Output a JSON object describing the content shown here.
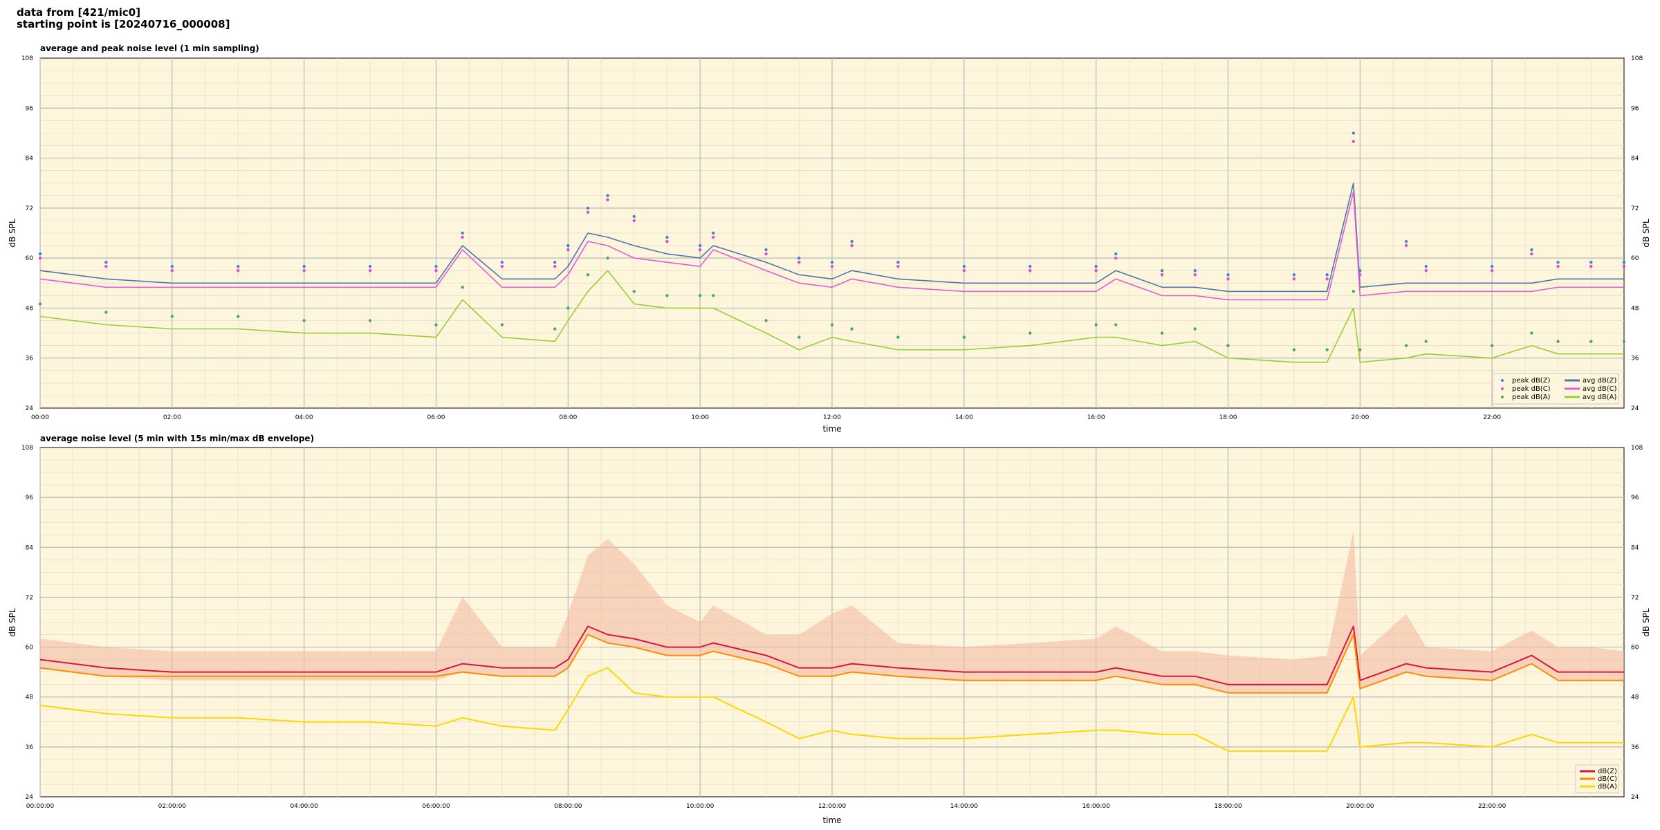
{
  "header": {
    "line1": "data from [421/mic0]",
    "line2": "starting point is [20240716_000008]"
  },
  "colors": {
    "background": "#fdf6dc",
    "peak_z": "#3a88d4",
    "peak_c": "#ee44dd",
    "peak_a": "#44aa66",
    "avg_z": "#4f75ad",
    "avg_c": "#e35cd6",
    "avg_a": "#9acd32",
    "env_z": "#dc143c",
    "env_c": "#ff8c00",
    "env_a": "#ffd700",
    "envelope": "#f4b6a0"
  },
  "chart_data": [
    {
      "type": "line",
      "title": "average and peak noise level (1 min sampling)",
      "xlabel": "time",
      "ylabel": "dB SPL",
      "xlim": [
        0,
        24
      ],
      "ylim": [
        24,
        108
      ],
      "yticks": [
        "24",
        "36",
        "48",
        "60",
        "72",
        "84",
        "96",
        "108"
      ],
      "xticks": [
        "00:00",
        "02:00",
        "04:00",
        "06:00",
        "08:00",
        "10:00",
        "12:00",
        "14:00",
        "16:00",
        "18:00",
        "20:00",
        "22:00"
      ],
      "grid": true,
      "legend_position": "bottom-right",
      "legend": [
        "peak dB(Z)",
        "peak dB(C)",
        "peak dB(A)",
        "avg dB(Z)",
        "avg dB(C)",
        "avg dB(A)"
      ],
      "x": [
        0,
        1,
        2,
        3,
        4,
        5,
        6,
        6.4,
        7,
        7.8,
        8,
        8.3,
        8.6,
        9,
        9.5,
        10,
        10.2,
        11,
        11.5,
        12,
        12.3,
        13,
        14,
        15,
        16,
        16.3,
        17,
        17.5,
        18,
        19,
        19.5,
        19.9,
        20,
        20.7,
        21,
        22,
        22.6,
        23,
        23.5,
        24
      ],
      "series": [
        {
          "name": "avg dB(Z)",
          "values": [
            57,
            55,
            54,
            54,
            54,
            54,
            54,
            63,
            55,
            55,
            58,
            66,
            65,
            63,
            61,
            60,
            63,
            59,
            56,
            55,
            57,
            55,
            54,
            54,
            54,
            57,
            53,
            53,
            52,
            52,
            52,
            78,
            53,
            54,
            54,
            54,
            54,
            55,
            55,
            55
          ]
        },
        {
          "name": "avg dB(C)",
          "values": [
            55,
            53,
            53,
            53,
            53,
            53,
            53,
            62,
            53,
            53,
            56,
            64,
            63,
            60,
            59,
            58,
            62,
            57,
            54,
            53,
            55,
            53,
            52,
            52,
            52,
            55,
            51,
            51,
            50,
            50,
            50,
            76,
            51,
            52,
            52,
            52,
            52,
            53,
            53,
            53
          ]
        },
        {
          "name": "avg dB(A)",
          "values": [
            46,
            44,
            43,
            43,
            42,
            42,
            41,
            50,
            41,
            40,
            45,
            52,
            57,
            49,
            48,
            48,
            48,
            42,
            38,
            41,
            40,
            38,
            38,
            39,
            41,
            41,
            39,
            40,
            36,
            35,
            35,
            48,
            35,
            36,
            37,
            36,
            39,
            37,
            37,
            37
          ]
        },
        {
          "name": "peak dB(Z)",
          "values": [
            61,
            59,
            58,
            58,
            58,
            58,
            58,
            66,
            59,
            59,
            63,
            72,
            75,
            70,
            65,
            63,
            66,
            62,
            60,
            59,
            64,
            59,
            58,
            58,
            58,
            61,
            57,
            57,
            56,
            56,
            56,
            90,
            57,
            64,
            58,
            58,
            62,
            59,
            59,
            59
          ]
        },
        {
          "name": "peak dB(C)",
          "values": [
            60,
            58,
            57,
            57,
            57,
            57,
            57,
            65,
            58,
            58,
            62,
            71,
            74,
            69,
            64,
            62,
            65,
            61,
            59,
            58,
            63,
            58,
            57,
            57,
            57,
            60,
            56,
            56,
            55,
            55,
            55,
            88,
            56,
            63,
            57,
            57,
            61,
            58,
            58,
            58
          ]
        },
        {
          "name": "peak dB(A)",
          "values": [
            49,
            47,
            46,
            46,
            45,
            45,
            44,
            53,
            44,
            43,
            48,
            56,
            60,
            52,
            51,
            51,
            51,
            45,
            41,
            44,
            43,
            41,
            41,
            42,
            44,
            44,
            42,
            43,
            39,
            38,
            38,
            52,
            38,
            39,
            40,
            39,
            42,
            40,
            40,
            40
          ]
        }
      ]
    },
    {
      "type": "line",
      "title": "average noise level (5 min with 15s min/max dB envelope)",
      "xlabel": "time",
      "ylabel": "dB SPL",
      "xlim": [
        0,
        24
      ],
      "ylim": [
        24,
        108
      ],
      "yticks": [
        "24",
        "36",
        "48",
        "60",
        "72",
        "84",
        "96",
        "108"
      ],
      "xticks": [
        "00:00:00",
        "02:00:00",
        "04:00:00",
        "06:00:00",
        "08:00:00",
        "10:00:00",
        "12:00:00",
        "14:00:00",
        "16:00:00",
        "18:00:00",
        "20:00:00",
        "22:00:00"
      ],
      "grid": true,
      "legend_position": "bottom-right",
      "legend": [
        "dB(Z)",
        "dB(C)",
        "dB(A)"
      ],
      "x": [
        0,
        1,
        2,
        3,
        4,
        5,
        6,
        6.4,
        7,
        7.8,
        8,
        8.3,
        8.6,
        9,
        9.5,
        10,
        10.2,
        11,
        11.5,
        12,
        12.3,
        13,
        14,
        15,
        16,
        16.3,
        17,
        17.5,
        18,
        19,
        19.5,
        19.9,
        20,
        20.7,
        21,
        22,
        22.6,
        23,
        23.5,
        24
      ],
      "series": [
        {
          "name": "dB(Z)",
          "values": [
            57,
            55,
            54,
            54,
            54,
            54,
            54,
            56,
            55,
            55,
            57,
            65,
            63,
            62,
            60,
            60,
            61,
            58,
            55,
            55,
            56,
            55,
            54,
            54,
            54,
            55,
            53,
            53,
            51,
            51,
            51,
            65,
            52,
            56,
            55,
            54,
            58,
            54,
            54,
            54
          ]
        },
        {
          "name": "dB(C)",
          "values": [
            55,
            53,
            53,
            53,
            53,
            53,
            53,
            54,
            53,
            53,
            55,
            63,
            61,
            60,
            58,
            58,
            59,
            56,
            53,
            53,
            54,
            53,
            52,
            52,
            52,
            53,
            51,
            51,
            49,
            49,
            49,
            63,
            50,
            54,
            53,
            52,
            56,
            52,
            52,
            52
          ]
        },
        {
          "name": "dB(A)",
          "values": [
            46,
            44,
            43,
            43,
            42,
            42,
            41,
            43,
            41,
            40,
            45,
            53,
            55,
            49,
            48,
            48,
            48,
            42,
            38,
            40,
            39,
            38,
            38,
            39,
            40,
            40,
            39,
            39,
            35,
            35,
            35,
            48,
            36,
            37,
            37,
            36,
            39,
            37,
            37,
            37
          ]
        },
        {
          "name": "envelope max",
          "values": [
            62,
            60,
            59,
            59,
            59,
            59,
            59,
            72,
            60,
            60,
            68,
            82,
            86,
            80,
            70,
            66,
            70,
            63,
            63,
            68,
            70,
            61,
            60,
            61,
            62,
            65,
            59,
            59,
            58,
            57,
            58,
            88,
            58,
            68,
            60,
            59,
            64,
            60,
            60,
            59
          ]
        }
      ]
    }
  ]
}
